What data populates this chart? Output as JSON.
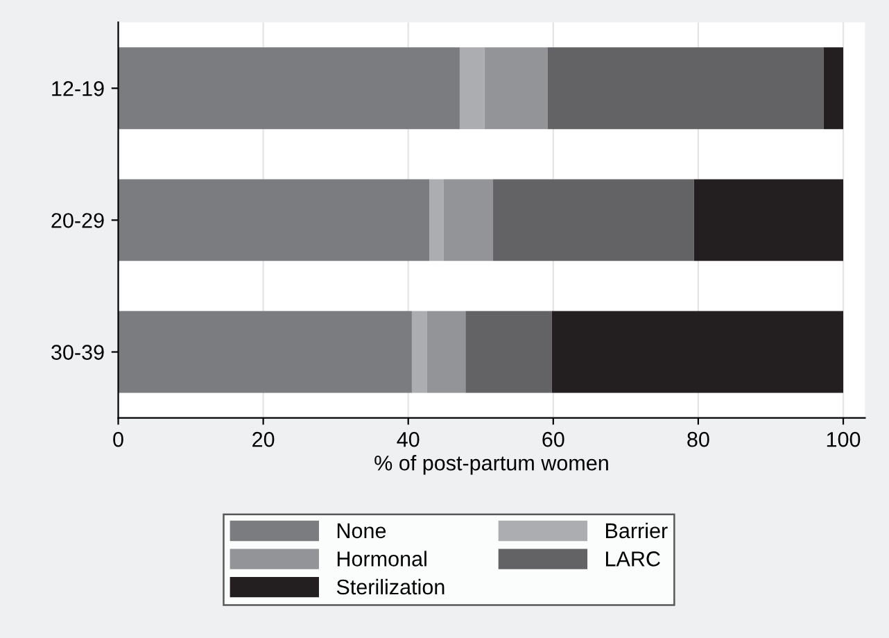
{
  "chart_data": {
    "type": "bar",
    "orientation": "horizontal",
    "stacked": true,
    "xlabel": "% of post-partum women",
    "categories": [
      "12-19",
      "20-29",
      "30-39"
    ],
    "series": [
      {
        "name": "None",
        "color": "#7b7c80",
        "values": [
          47.1,
          42.9,
          40.5
        ]
      },
      {
        "name": "Barrier",
        "color": "#acadb0",
        "values": [
          3.4,
          2.0,
          2.1
        ]
      },
      {
        "name": "Hormonal",
        "color": "#939497",
        "values": [
          8.7,
          6.8,
          5.3
        ]
      },
      {
        "name": "LARC",
        "color": "#636365",
        "values": [
          38.1,
          27.7,
          11.9
        ]
      },
      {
        "name": "Sterilization",
        "color": "#231f20",
        "values": [
          2.7,
          20.6,
          40.2
        ]
      }
    ],
    "xlim": [
      0,
      103
    ],
    "xticks": [
      0,
      20,
      40,
      60,
      80,
      100
    ],
    "grid": "x",
    "legend": "bottom"
  }
}
